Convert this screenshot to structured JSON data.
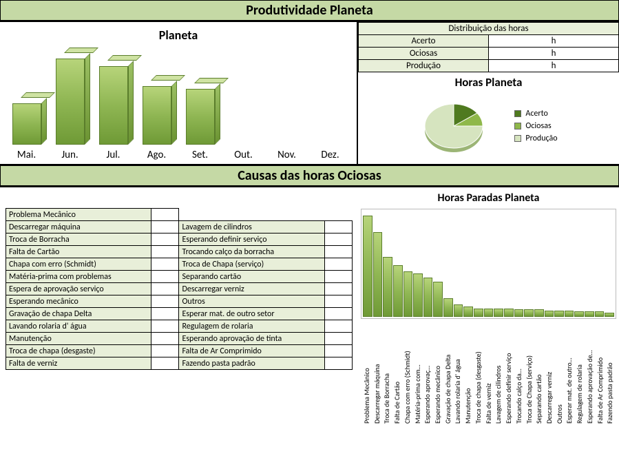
{
  "main_title": "Produtividade Planeta",
  "section2_title": "Causas das horas Ociosas",
  "colors": {
    "header_bg": "#c5d9a5",
    "cell_bg": "#e8efd9",
    "bar_gradient": [
      "#b7d47a",
      "#8fb653",
      "#6f9a36"
    ],
    "bar_border": "#5a7d2b",
    "pie_acerto": "#4f7a1f",
    "pie_ociosas": "#8fb84a",
    "pie_producao": "#d6e4bf"
  },
  "planeta_chart": {
    "title": "Planeta",
    "type": "bar",
    "categories": [
      "Mai.",
      "Jun.",
      "Jul.",
      "Ago.",
      "Set.",
      "Out.",
      "Nov.",
      "Dez."
    ],
    "values": [
      55,
      115,
      105,
      78,
      75,
      0,
      0,
      0
    ],
    "ymax": 120,
    "bar_color": "#8fb653"
  },
  "dist_table": {
    "header": "Distribuição das horas",
    "rows": [
      {
        "label": "Acerto",
        "value": "h"
      },
      {
        "label": "Ociosas",
        "value": "h"
      },
      {
        "label": "Produção",
        "value": "h"
      }
    ]
  },
  "pie_chart": {
    "title": "Horas Planeta",
    "type": "pie",
    "slices": [
      {
        "label": "Acerto",
        "value": 15,
        "color": "#4f7a1f"
      },
      {
        "label": "Ociosas",
        "value": 10,
        "color": "#8fb84a"
      },
      {
        "label": "Produção",
        "value": 75,
        "color": "#d6e4bf"
      }
    ]
  },
  "causes": {
    "col1": [
      "Problema Mecânico",
      "Descarregar máquina",
      "Troca de Borracha",
      "Falta de Cartão",
      "Chapa com erro (Schmidt)",
      "Matéria-prima com problemas",
      "Espera de aprovação serviço",
      "Esperando mecânico",
      "Gravação de chapa Delta",
      "Lavando rolaria d' água",
      "Manutenção",
      "Troca de chapa (desgaste)",
      "Falta de verniz"
    ],
    "col2": [
      "",
      "Lavagem de cilindros",
      "Esperando definir serviço",
      "Trocando calço da borracha",
      "Troca de Chapa (serviço)",
      "Separando cartão",
      "Descarregar verniz",
      "Outros",
      "Esperar mat. de outro setor",
      "Regulagem de rolaria",
      "Esperando aprovação de tinta",
      "Falta de Ar Comprimido",
      "Fazendo pasta padrão"
    ]
  },
  "paradas_chart": {
    "title": "Horas Paradas Planeta",
    "type": "bar",
    "ymax": 100,
    "bars": [
      {
        "label": "Problema Mecânico",
        "value": 98
      },
      {
        "label": "Descarregar máquina",
        "value": 82
      },
      {
        "label": "Troca de Borracha",
        "value": 58
      },
      {
        "label": "Falta de Cartão",
        "value": 50
      },
      {
        "label": "Chapa com erro (Schmidt)",
        "value": 44
      },
      {
        "label": "Matéria-prima com…",
        "value": 42
      },
      {
        "label": "Esperando aprovaç…",
        "value": 38
      },
      {
        "label": "Esperando mecânico",
        "value": 34
      },
      {
        "label": "Gravação de chapa Delta",
        "value": 18
      },
      {
        "label": "Lavando rolaria d' água",
        "value": 12
      },
      {
        "label": "Manutenção",
        "value": 10
      },
      {
        "label": "Troca de chapa (desgaste)",
        "value": 8
      },
      {
        "label": "Falta de verniz",
        "value": 8
      },
      {
        "label": "Lavagem de cilindros",
        "value": 8
      },
      {
        "label": "Esperando definir serviço",
        "value": 8
      },
      {
        "label": "Trocando calço da…",
        "value": 7
      },
      {
        "label": "Troca de Chapa (serviço)",
        "value": 7
      },
      {
        "label": "Separando cartão",
        "value": 7
      },
      {
        "label": "Descarregar verniz",
        "value": 6
      },
      {
        "label": "Outros",
        "value": 6
      },
      {
        "label": "Esperar mat. de outro…",
        "value": 6
      },
      {
        "label": "Regulagem de rolaria",
        "value": 5
      },
      {
        "label": "Esperando aprovação de…",
        "value": 5
      },
      {
        "label": "Falta de Ar Comprimido",
        "value": 5
      },
      {
        "label": "Fazendo pasta padrão",
        "value": 4
      }
    ]
  }
}
